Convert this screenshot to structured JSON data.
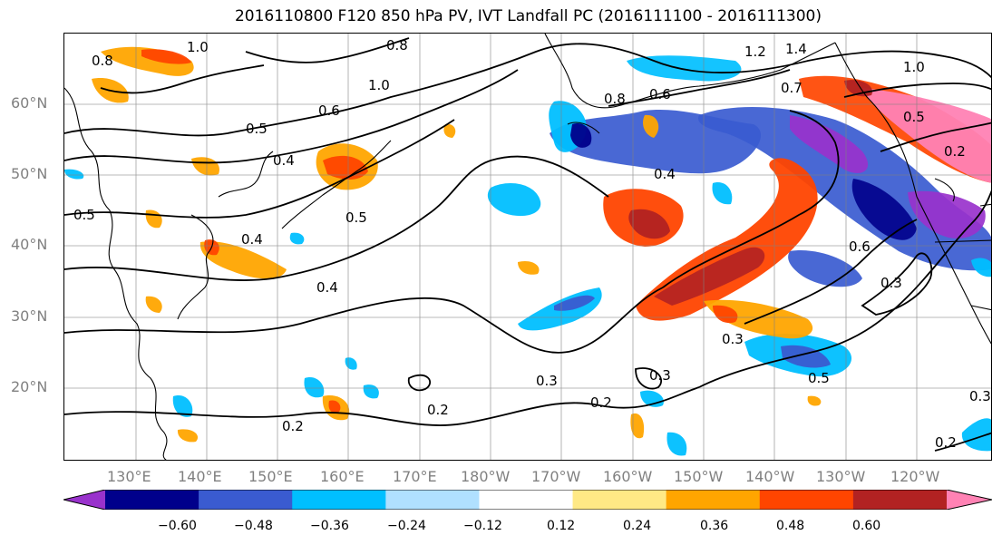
{
  "title": "2016110800 F120 850 hPa PV, IVT Landfall PC (2016111100 - 2016111300)",
  "lat_labels": [
    "60°N",
    "50°N",
    "40°N",
    "30°N",
    "20°N"
  ],
  "lon_labels": [
    "130°E",
    "140°E",
    "150°E",
    "160°E",
    "170°E",
    "180°W",
    "170°W",
    "160°W",
    "150°W",
    "140°W",
    "130°W",
    "120°W"
  ],
  "contour_labels": [
    "0.8",
    "1.0",
    "0.8",
    "1.0",
    "0.6",
    "0.5",
    "0.4",
    "0.5",
    "0.4",
    "0.5",
    "0.4",
    "0.3",
    "0.2",
    "0.2",
    "0.3",
    "0.2",
    "0.6",
    "0.8",
    "0.4",
    "0.3",
    "0.5",
    "0.6",
    "1.2",
    "1.4",
    "1.0",
    "0.5",
    "0.2",
    "0.2",
    "0.3",
    "0.7",
    "0.3"
  ],
  "colorbar": {
    "ticks": [
      "−0.60",
      "−0.48",
      "−0.36",
      "−0.24",
      "−0.12",
      "0.12",
      "0.24",
      "0.36",
      "0.48",
      "0.60"
    ],
    "colors": [
      "#9932cc",
      "#00008b",
      "#3a5bd0",
      "#00bfff",
      "#b0e0ff",
      "#ffffff",
      "#ffe985",
      "#ffa500",
      "#ff4500",
      "#b22222",
      "#ff82b4"
    ]
  }
}
